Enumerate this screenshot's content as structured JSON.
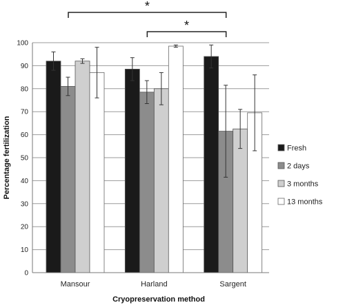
{
  "chart_data": {
    "type": "bar",
    "categories": [
      "Mansour",
      "Harland",
      "Sargent"
    ],
    "series": [
      {
        "name": "Fresh",
        "color": "#1a1a1a",
        "values": [
          92,
          88.5,
          94
        ],
        "error": [
          4,
          5,
          5
        ]
      },
      {
        "name": "2 days",
        "color": "#8c8c8c",
        "values": [
          81,
          78.5,
          61.5
        ],
        "error": [
          4,
          5,
          20
        ]
      },
      {
        "name": "3 months",
        "color": "#cfcfcf",
        "values": [
          92,
          80,
          62.5
        ],
        "error": [
          1,
          7,
          8.5
        ]
      },
      {
        "name": "13 months",
        "color": "#ffffff",
        "values": [
          87,
          98.5,
          69.5
        ],
        "error": [
          11,
          0.5,
          16.5
        ]
      }
    ],
    "xlabel": "Cryopreservation method",
    "ylabel": "Percentage fertilization",
    "ylim": [
      0,
      100
    ],
    "yticks": [
      "0",
      "10",
      "20",
      "30",
      "40",
      "50",
      "60",
      "70",
      "80",
      "90",
      "100"
    ],
    "grid": "horizontal",
    "legend_position": "right",
    "significance": [
      {
        "from": "Mansour",
        "to": "Sargent",
        "label": "*"
      },
      {
        "from": "Harland",
        "to": "Sargent",
        "label": "*"
      }
    ]
  }
}
